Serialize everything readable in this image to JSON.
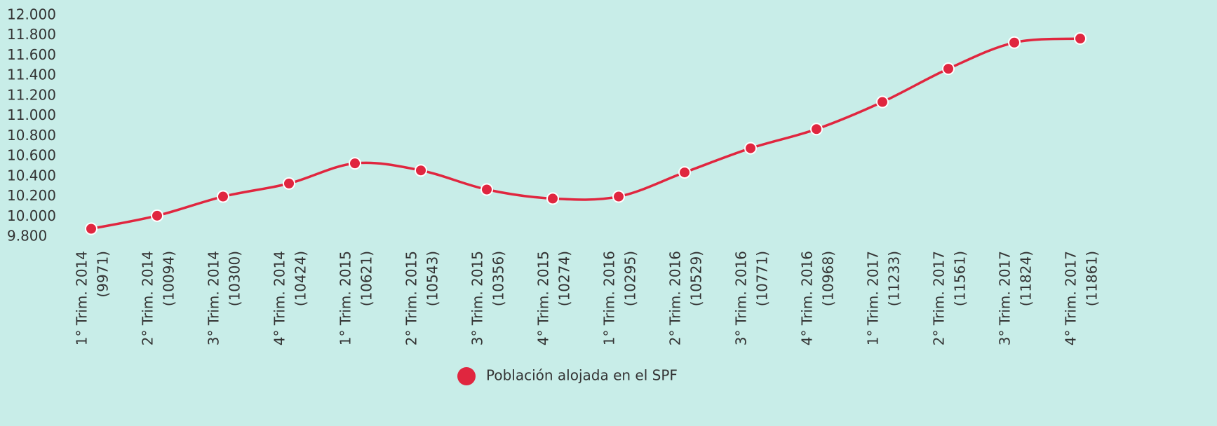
{
  "chart_data": {
    "type": "line",
    "categories": [
      [
        "1° Trim. 2014",
        "(9971)"
      ],
      [
        "2° Trim. 2014",
        "(10094)"
      ],
      [
        "3° Trim. 2014",
        "(10300)"
      ],
      [
        "4° Trim. 2014",
        "(10424)"
      ],
      [
        "1° Trim. 2015",
        "(10621)"
      ],
      [
        "2° Trim. 2015",
        "(10543)"
      ],
      [
        "3° Trim. 2015",
        "(10356)"
      ],
      [
        "4° Trim. 2015",
        "(10274)"
      ],
      [
        "1° Trim. 2016",
        "(10295)"
      ],
      [
        "2° Trim. 2016",
        "(10529)"
      ],
      [
        "3° Trim. 2016",
        "(10771)"
      ],
      [
        "4° Trim. 2016",
        "(10968)"
      ],
      [
        "1° Trim. 2017",
        "(11233)"
      ],
      [
        "2° Trim. 2017",
        "(11561)"
      ],
      [
        "3° Trim. 2017",
        "(11824)"
      ],
      [
        "4° Trim. 2017",
        "(11861)"
      ]
    ],
    "series": [
      {
        "name": "Población alojada en el SPF",
        "color": "#e0263f",
        "values": [
          9880,
          10010,
          10200,
          10330,
          10530,
          10460,
          10270,
          10180,
          10200,
          10440,
          10680,
          10870,
          11140,
          11470,
          11730,
          11770
        ]
      }
    ],
    "ylim": [
      9800,
      12000
    ],
    "yticks": [
      {
        "value": 9800,
        "label": "9.800"
      },
      {
        "value": 10000,
        "label": "10.000"
      },
      {
        "value": 10200,
        "label": "10.200"
      },
      {
        "value": 10400,
        "label": "10.400"
      },
      {
        "value": 10600,
        "label": "10.600"
      },
      {
        "value": 10800,
        "label": "10.800"
      },
      {
        "value": 11000,
        "label": "11.000"
      },
      {
        "value": 11200,
        "label": "11.200"
      },
      {
        "value": 11400,
        "label": "11.400"
      },
      {
        "value": 11600,
        "label": "11.600"
      },
      {
        "value": 11800,
        "label": "11.800"
      },
      {
        "value": 12000,
        "label": "12.000"
      }
    ],
    "grid": false,
    "legend": "bottom"
  }
}
